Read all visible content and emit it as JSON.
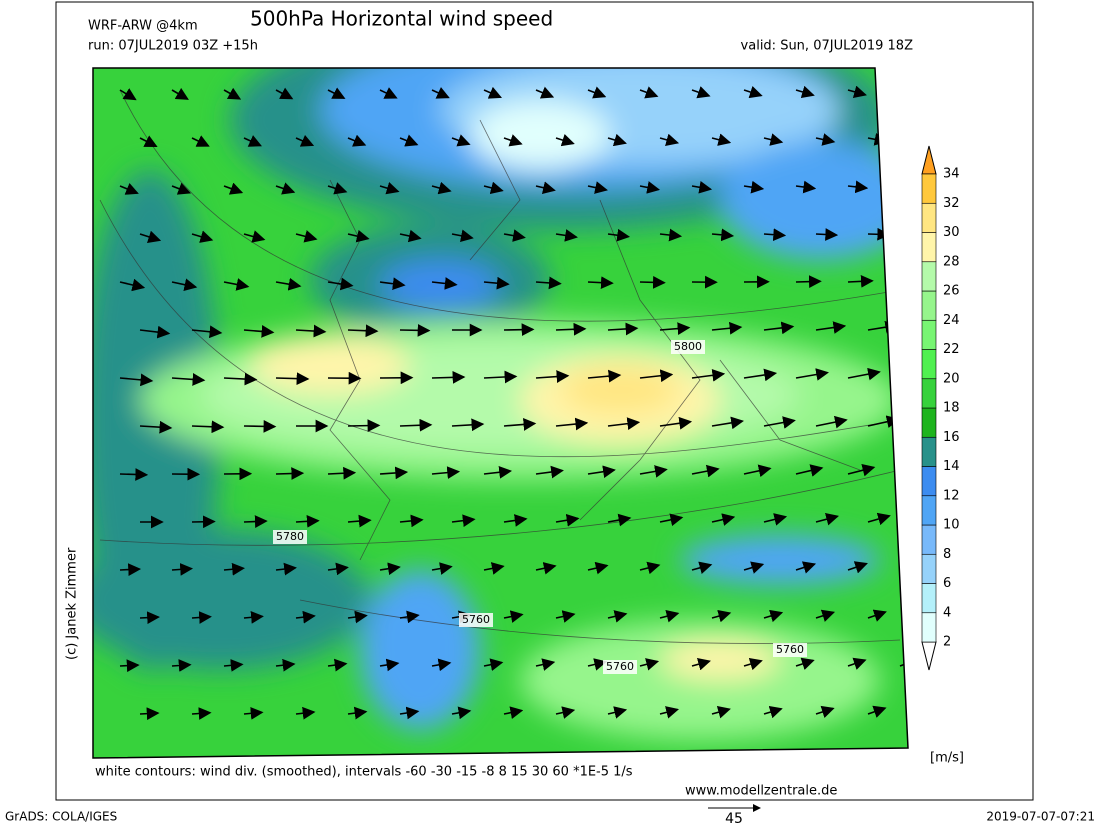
{
  "header": {
    "model": "WRF-ARW @4km",
    "title": "500hPa Horizontal wind speed",
    "run": "run: 07JUL2019 03Z +15h",
    "valid": "valid: Sun, 07JUL2019 18Z"
  },
  "colorbar": {
    "labels": [
      "2",
      "4",
      "6",
      "8",
      "10",
      "12",
      "14",
      "16",
      "18",
      "20",
      "22",
      "24",
      "26",
      "28",
      "30",
      "32",
      "34"
    ],
    "colors": [
      "#e1fffd",
      "#b4f0fa",
      "#96d2fa",
      "#78b9fa",
      "#50a5f5",
      "#3c8cf0",
      "#28918a",
      "#1eb41e",
      "#37d23c",
      "#50f050",
      "#78f573",
      "#96f58c",
      "#b4faaa",
      "#fff5aa",
      "#ffe682",
      "#ffc83c"
    ],
    "under_color": "#ffffff",
    "over_color": "#ffa020",
    "unit": "[m/s]"
  },
  "contour_labels": [
    "5800",
    "5780",
    "5760",
    "5760",
    "5760"
  ],
  "footer": {
    "note": "white contours: wind div. (smoothed), intervals -60 -30 -15 -8 8 15 30 60 *1E-5 1/s",
    "website": "www.modellzentrale.de",
    "copyright": "(c) Janek Zimmer",
    "software": "GrADS: COLA/IGES",
    "timestamp": "2019-07-07-07:21",
    "reference_vector": "45"
  }
}
